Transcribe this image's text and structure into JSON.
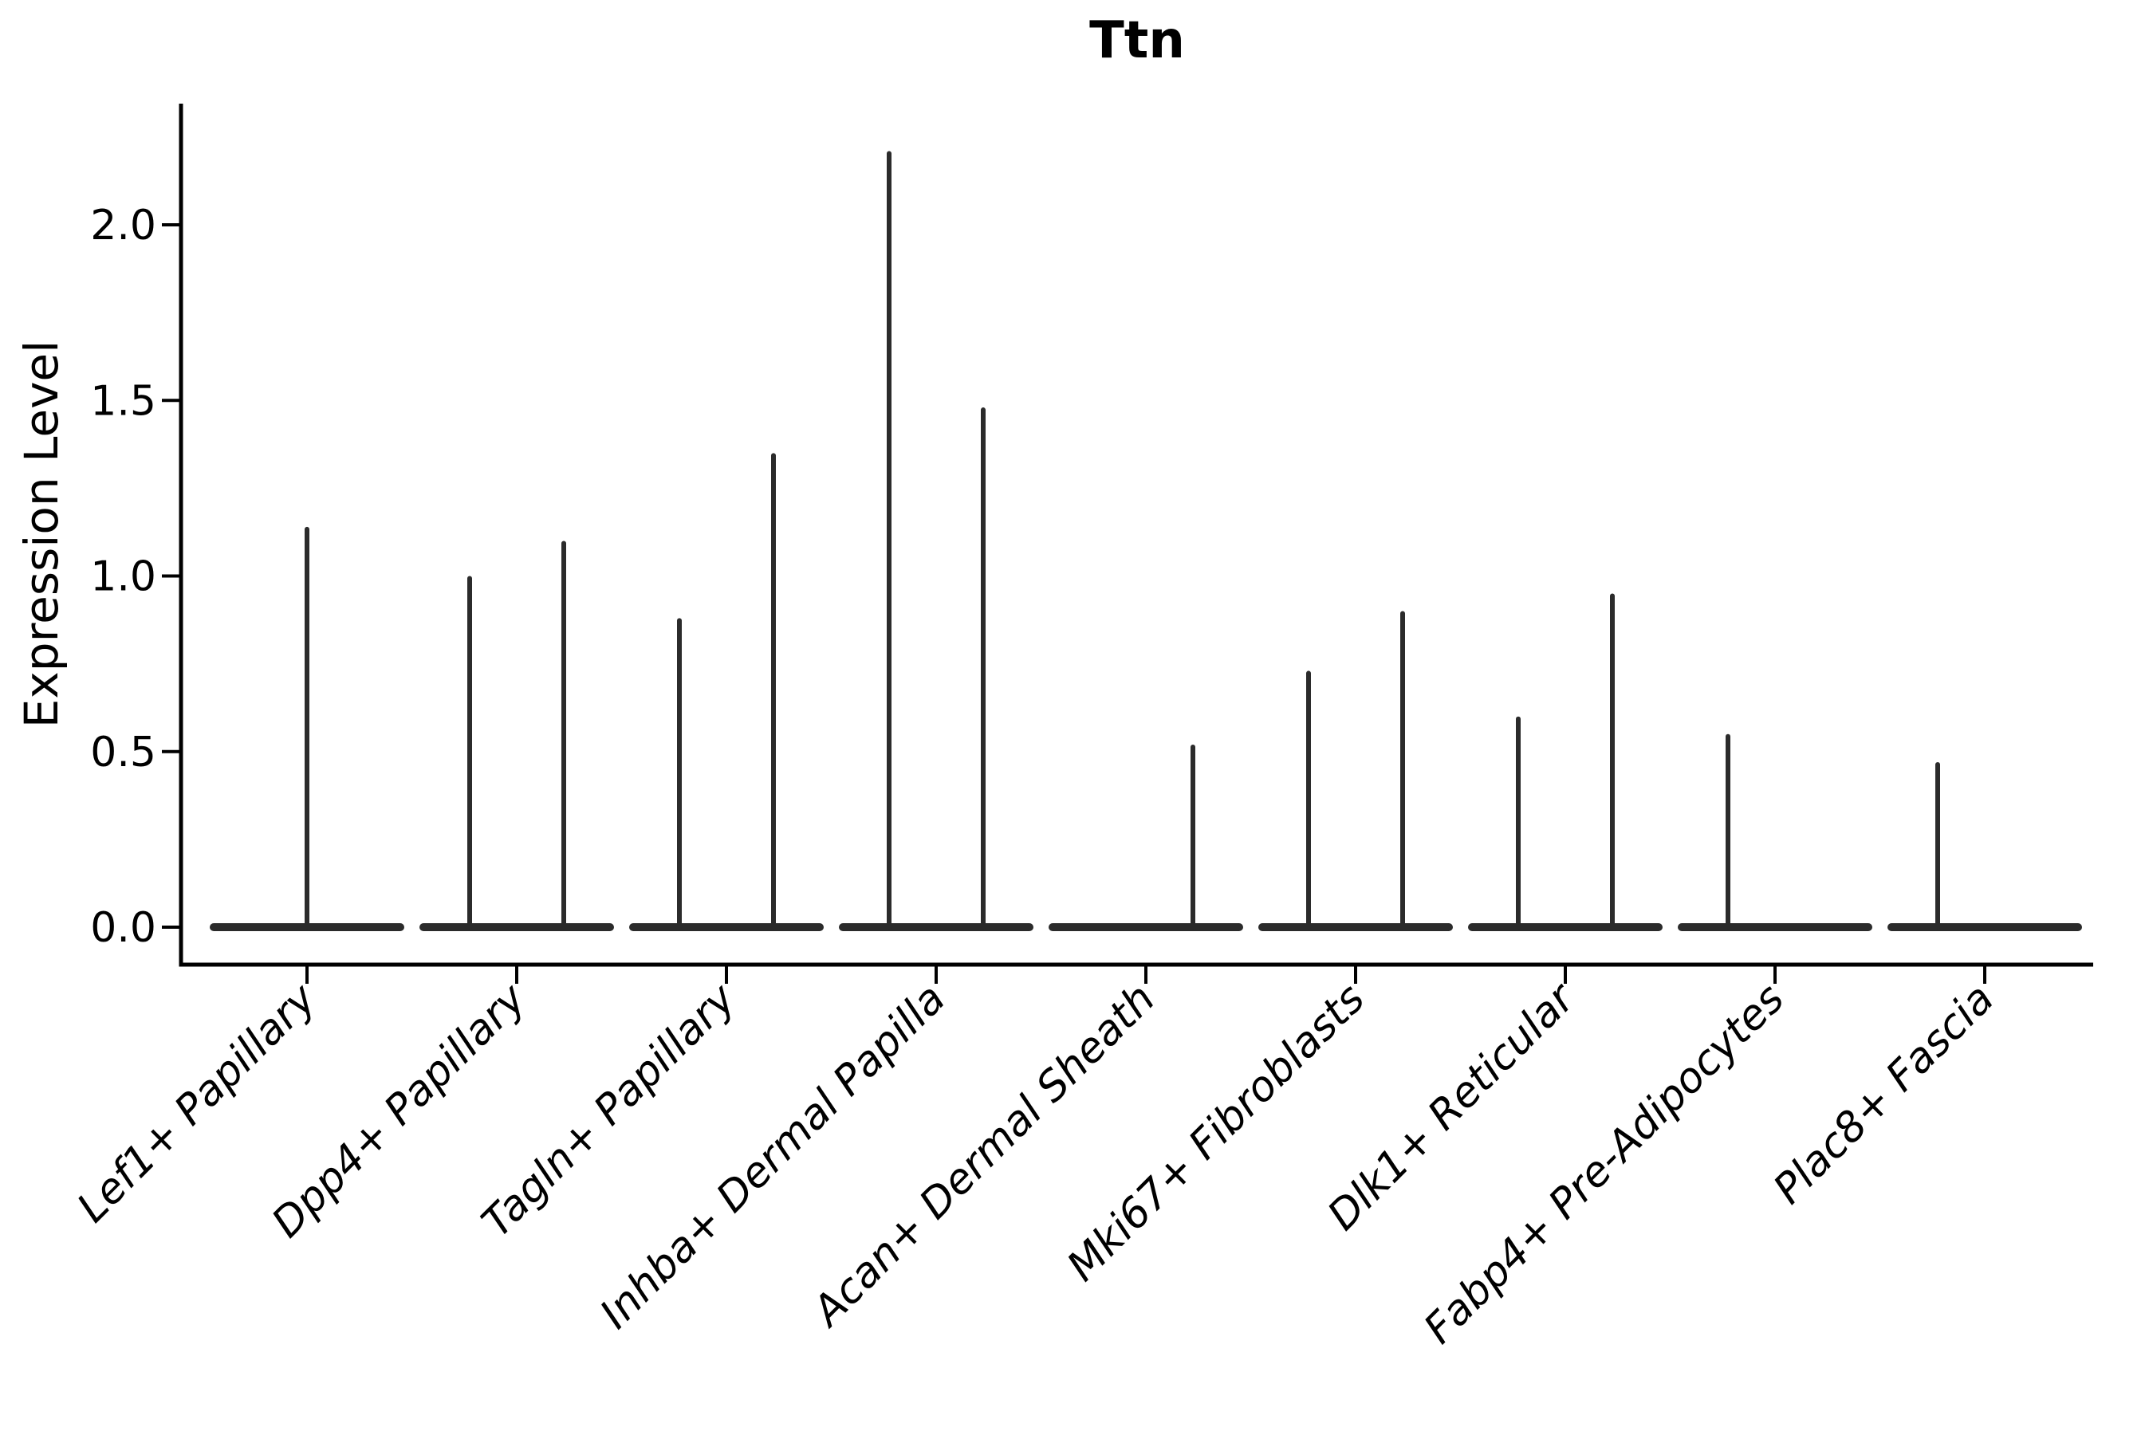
{
  "chart_data": {
    "type": "violin",
    "title": "Ttn",
    "ylabel": "Expression Level",
    "ytick_labels": [
      "0.0",
      "0.5",
      "1.0",
      "1.5",
      "2.0"
    ],
    "yticks": [
      0.0,
      0.5,
      1.0,
      1.5,
      2.0
    ],
    "ylim": [
      -0.11,
      2.37
    ],
    "baseline_value": 0.0,
    "grid": "off",
    "legend": "none",
    "note": "Each category shows flat violin body at 0 with thin density spikes up to max expression; some categories contain two sub-violins (left/right).",
    "violins": [
      {
        "category": "Lef1+ Papillary",
        "spikes": [
          {
            "side": "center",
            "max": 1.14
          }
        ]
      },
      {
        "category": "Dpp4+ Papillary",
        "spikes": [
          {
            "side": "left",
            "max": 1.0
          },
          {
            "side": "right",
            "max": 1.1
          }
        ]
      },
      {
        "category": "Tagln+ Papillary",
        "spikes": [
          {
            "side": "left",
            "max": 0.88
          },
          {
            "side": "right",
            "max": 1.35
          }
        ]
      },
      {
        "category": "Inhba+ Dermal Papilla",
        "spikes": [
          {
            "side": "left",
            "max": 2.21
          },
          {
            "side": "right",
            "max": 1.48
          }
        ]
      },
      {
        "category": "Acan+ Dermal Sheath",
        "spikes": [
          {
            "side": "right",
            "max": 0.52
          }
        ]
      },
      {
        "category": "Mki67+ Fibroblasts",
        "spikes": [
          {
            "side": "left",
            "max": 0.73
          },
          {
            "side": "right",
            "max": 0.9
          }
        ]
      },
      {
        "category": "Dlk1+ Reticular",
        "spikes": [
          {
            "side": "left",
            "max": 0.6
          },
          {
            "side": "right",
            "max": 0.95
          }
        ]
      },
      {
        "category": "Fabp4+ Pre-Adipocytes",
        "spikes": [
          {
            "side": "left",
            "max": 0.55
          }
        ]
      },
      {
        "category": "Plac8+ Fascia",
        "spikes": [
          {
            "side": "left",
            "max": 0.47
          }
        ]
      }
    ],
    "colors": {
      "violin": "#2b2b2b",
      "axis": "#000000",
      "text": "#000000",
      "background": "#ffffff"
    }
  }
}
